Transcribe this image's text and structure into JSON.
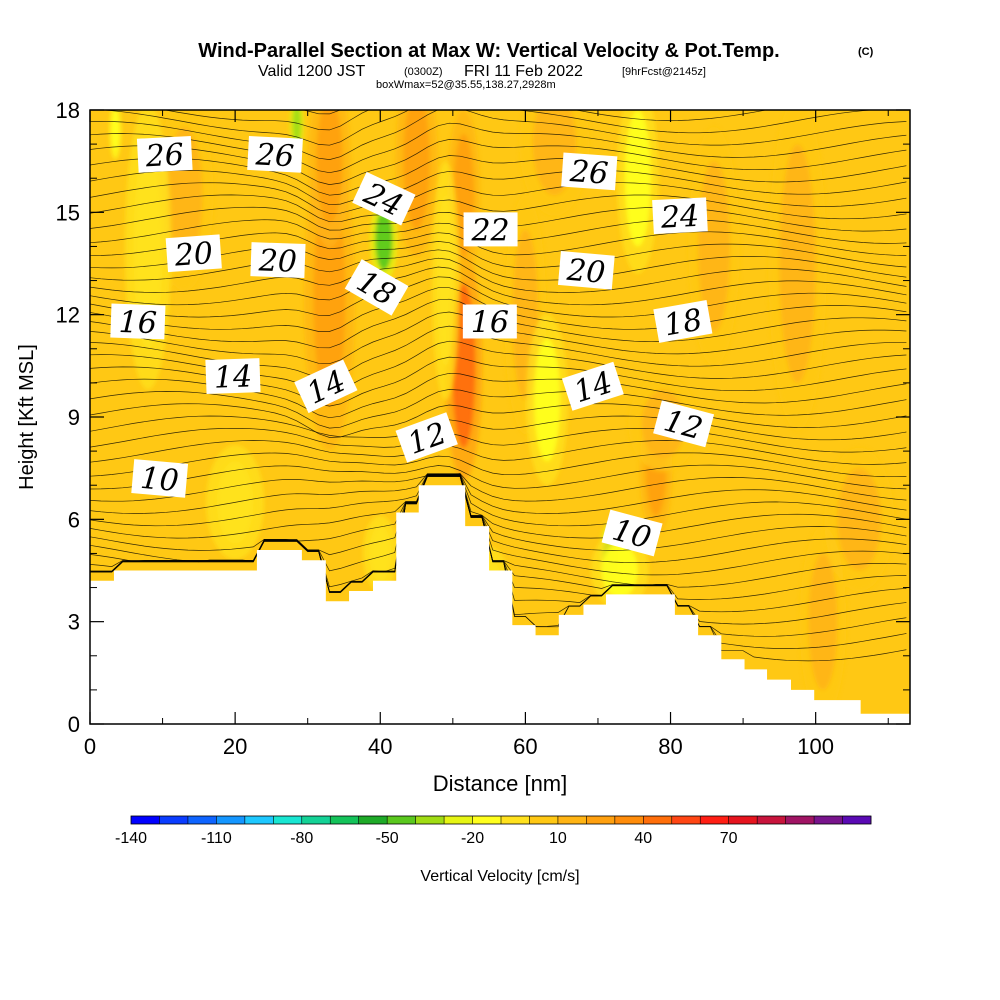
{
  "header": {
    "title": "Wind-Parallel Section at Max W: Vertical Velocity & Pot.Temp.",
    "title_mark": "(C)",
    "valid_prefix": "Valid 1200 JST",
    "valid_utc": "(0300Z)",
    "valid_date": "FRI 11 Feb 2022",
    "forecast": "[9hrFcst@2145z]",
    "box_info": "boxWmax=52@35.55,138.27,2928m"
  },
  "chart_data": {
    "type": "heatmap",
    "xlabel": "Distance [nm]",
    "ylabel": "Height [Kft MSL]",
    "xlim": [
      0,
      113
    ],
    "ylim": [
      0,
      18
    ],
    "x_ticks": [
      "0",
      "20",
      "40",
      "60",
      "80",
      "100"
    ],
    "y_ticks": [
      "0",
      "3",
      "6",
      "9",
      "12",
      "15",
      "18"
    ],
    "terrain": [
      [
        0,
        4.2
      ],
      [
        3.3,
        4.2
      ],
      [
        3.3,
        4.5
      ],
      [
        23,
        4.5
      ],
      [
        23,
        5.1
      ],
      [
        29.2,
        5.1
      ],
      [
        29.2,
        4.8
      ],
      [
        32.5,
        4.8
      ],
      [
        32.5,
        3.6
      ],
      [
        35.7,
        3.6
      ],
      [
        35.7,
        3.9
      ],
      [
        39,
        3.9
      ],
      [
        39,
        4.2
      ],
      [
        42.2,
        4.2
      ],
      [
        42.2,
        5.1
      ],
      [
        42.2,
        5.1
      ],
      [
        42.2,
        5.1
      ],
      [
        42.2,
        5.8
      ],
      [
        42.2,
        5.8
      ],
      [
        42.2,
        5.8
      ],
      [
        42.2,
        5.1
      ],
      [
        42.2,
        5.1
      ],
      [
        42.2,
        5.8
      ],
      [
        42.2,
        5.8
      ],
      [
        42.2,
        5.8
      ],
      [
        42.2,
        6.2
      ],
      [
        45.3,
        6.2
      ],
      [
        45.3,
        6.6
      ],
      [
        45.3,
        6.6
      ],
      [
        45.3,
        7.0
      ],
      [
        51.7,
        7.0
      ],
      [
        51.7,
        5.8
      ],
      [
        55,
        5.8
      ],
      [
        55,
        4.5
      ],
      [
        58.2,
        4.5
      ],
      [
        58.2,
        2.9
      ],
      [
        61.4,
        2.9
      ],
      [
        61.4,
        2.6
      ],
      [
        64.6,
        2.6
      ],
      [
        64.6,
        3.2
      ],
      [
        68,
        3.2
      ],
      [
        68,
        3.5
      ],
      [
        71.1,
        3.5
      ],
      [
        71.1,
        3.8
      ],
      [
        80.6,
        3.8
      ],
      [
        80.6,
        3.2
      ],
      [
        83.8,
        3.2
      ],
      [
        83.8,
        2.6
      ],
      [
        87,
        2.6
      ],
      [
        87,
        1.9
      ],
      [
        90.2,
        1.9
      ],
      [
        90.2,
        1.6
      ],
      [
        93.3,
        1.6
      ],
      [
        93.3,
        1.3
      ],
      [
        96.6,
        1.3
      ],
      [
        96.6,
        1.0
      ],
      [
        99.8,
        1.0
      ],
      [
        99.8,
        0.7
      ],
      [
        106.2,
        0.7
      ],
      [
        106.2,
        0.3
      ],
      [
        113,
        0.3
      ]
    ],
    "contour_labels": [
      {
        "text": "26",
        "x": 10.3,
        "y": 16.7,
        "angle": -3
      },
      {
        "text": "26",
        "x": 25.5,
        "y": 16.7,
        "angle": 3
      },
      {
        "text": "26",
        "x": 68.8,
        "y": 16.2,
        "angle": 4
      },
      {
        "text": "24",
        "x": 40.5,
        "y": 15.4,
        "angle": 25
      },
      {
        "text": "24",
        "x": 81.3,
        "y": 14.9,
        "angle": -3
      },
      {
        "text": "22",
        "x": 55.2,
        "y": 14.5,
        "angle": 0
      },
      {
        "text": "20",
        "x": 14.3,
        "y": 13.8,
        "angle": -4
      },
      {
        "text": "20",
        "x": 25.9,
        "y": 13.6,
        "angle": 2
      },
      {
        "text": "20",
        "x": 68.4,
        "y": 13.3,
        "angle": 5
      },
      {
        "text": "18",
        "x": 39.5,
        "y": 12.8,
        "angle": 30
      },
      {
        "text": "18",
        "x": 81.7,
        "y": 11.8,
        "angle": -10
      },
      {
        "text": "16",
        "x": 6.6,
        "y": 11.8,
        "angle": 2
      },
      {
        "text": "16",
        "x": 55.1,
        "y": 11.8,
        "angle": 0
      },
      {
        "text": "14",
        "x": 19.7,
        "y": 10.2,
        "angle": -2
      },
      {
        "text": "14",
        "x": 32.5,
        "y": 9.9,
        "angle": -25
      },
      {
        "text": "14",
        "x": 69.3,
        "y": 9.9,
        "angle": -18
      },
      {
        "text": "12",
        "x": 81.8,
        "y": 8.8,
        "angle": 15
      },
      {
        "text": "12",
        "x": 46.4,
        "y": 8.4,
        "angle": -20
      },
      {
        "text": "10",
        "x": 9.6,
        "y": 7.2,
        "angle": 5
      },
      {
        "text": "10",
        "x": 74.7,
        "y": 5.6,
        "angle": 15
      }
    ],
    "colorbar": {
      "label": "Vertical Velocity [cm/s]",
      "tick_labels": [
        "-140",
        "-110",
        "-80",
        "-50",
        "-20",
        "10",
        "40",
        "70"
      ],
      "colors": [
        "#0000ff",
        "#0a3cff",
        "#0e64ff",
        "#1496ff",
        "#1ec8ff",
        "#19e6d2",
        "#14d296",
        "#14c35a",
        "#1eaa28",
        "#5ac81e",
        "#a0dc14",
        "#e6f514",
        "#ffff1e",
        "#ffe11e",
        "#ffc814",
        "#ffb414",
        "#ffa00f",
        "#ff8c0a",
        "#ff6e0a",
        "#ff4614",
        "#ff1e14",
        "#e6141e",
        "#c8143c",
        "#a01464",
        "#78148c",
        "#5a0ab4"
      ]
    },
    "velocity_features": [
      {
        "x": 51.5,
        "y": 10.5,
        "value": 40,
        "sx": 1.6,
        "sy": 2.4
      },
      {
        "x": 51.5,
        "y": 15.5,
        "value": 25,
        "sx": 1.4,
        "sy": 1.8
      },
      {
        "x": 33,
        "y": 12.5,
        "value": 25,
        "sx": 2.2,
        "sy": 3.2
      },
      {
        "x": 33,
        "y": 16.5,
        "value": 20,
        "sx": 1.8,
        "sy": 1.8
      },
      {
        "x": 45,
        "y": 16.5,
        "value": 20,
        "sx": 1.8,
        "sy": 2.0
      },
      {
        "x": 78,
        "y": 7.5,
        "value": 25,
        "sx": 1.4,
        "sy": 1.4
      },
      {
        "x": 79,
        "y": 8.8,
        "value": 15,
        "sx": 3.0,
        "sy": 1.0
      },
      {
        "x": 86,
        "y": 14,
        "value": 18,
        "sx": 2.2,
        "sy": 2.5
      },
      {
        "x": 97.5,
        "y": 13.5,
        "value": 12,
        "sx": 2.5,
        "sy": 3.5
      },
      {
        "x": 106,
        "y": 6,
        "value": 12,
        "sx": 3,
        "sy": 1.5
      },
      {
        "x": 101,
        "y": 3,
        "value": 10,
        "sx": 2.0,
        "sy": 2.0
      },
      {
        "x": 13,
        "y": 15.5,
        "value": 15,
        "sx": 2.5,
        "sy": 2.0
      },
      {
        "x": 60,
        "y": 12,
        "value": 10,
        "sx": 1.8,
        "sy": 2.5
      },
      {
        "x": 64,
        "y": 17,
        "value": 12,
        "sx": 3.0,
        "sy": 1.5
      },
      {
        "x": 40.5,
        "y": 14.2,
        "value": -45,
        "sx": 1.2,
        "sy": 0.9
      },
      {
        "x": 28.5,
        "y": 17.6,
        "value": -40,
        "sx": 0.6,
        "sy": 0.6
      },
      {
        "x": 71.5,
        "y": 4.9,
        "value": -45,
        "sx": 0.8,
        "sy": 0.7
      },
      {
        "x": 3.5,
        "y": 17.4,
        "value": -20,
        "sx": 0.5,
        "sy": 0.6
      },
      {
        "x": 63,
        "y": 9.5,
        "value": -15,
        "sx": 1.8,
        "sy": 1.8
      },
      {
        "x": 73,
        "y": 4.5,
        "value": -18,
        "sx": 2.5,
        "sy": 0.8
      },
      {
        "x": 75.5,
        "y": 16,
        "value": -12,
        "sx": 1.8,
        "sy": 2.0
      },
      {
        "x": 49,
        "y": 13,
        "value": -10,
        "sx": 1.2,
        "sy": 2.5
      },
      {
        "x": 20,
        "y": 6.5,
        "value": -6,
        "sx": 2.5,
        "sy": 1.2
      },
      {
        "x": 8,
        "y": 14,
        "value": -5,
        "sx": 2.0,
        "sy": 3.0
      },
      {
        "x": 40,
        "y": 5,
        "value": -10,
        "sx": 1.5,
        "sy": 0.8
      },
      {
        "x": 55,
        "y": 3.8,
        "value": -5,
        "sx": 2.0,
        "sy": 1.0
      }
    ]
  }
}
